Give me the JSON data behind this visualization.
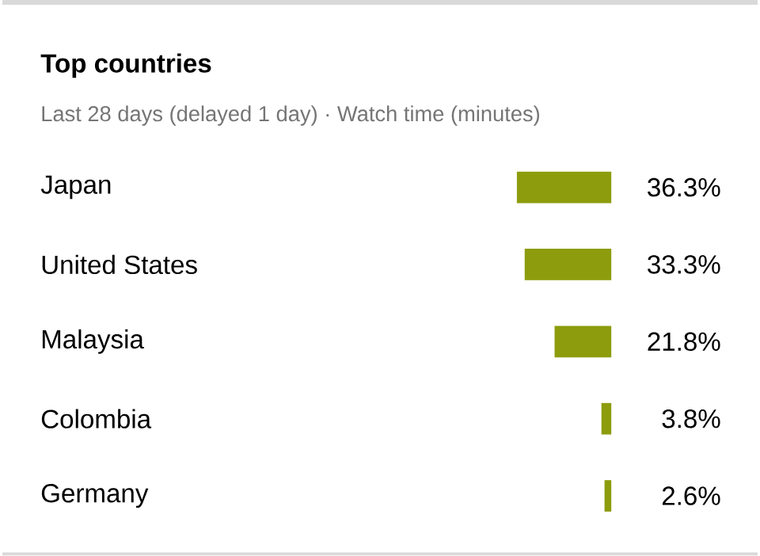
{
  "chart_data": {
    "type": "bar",
    "orientation": "horizontal",
    "title": "Top countries",
    "subtitle": "Last 28 days (delayed 1 day) · Watch time (minutes)",
    "categories": [
      "Japan",
      "United States",
      "Malaysia",
      "Colombia",
      "Germany"
    ],
    "values": [
      36.3,
      33.3,
      21.8,
      3.8,
      2.6
    ],
    "value_labels": [
      "36.3%",
      "33.3%",
      "21.8%",
      "3.8%",
      "2.6%"
    ],
    "color": "#8c9c0c"
  }
}
